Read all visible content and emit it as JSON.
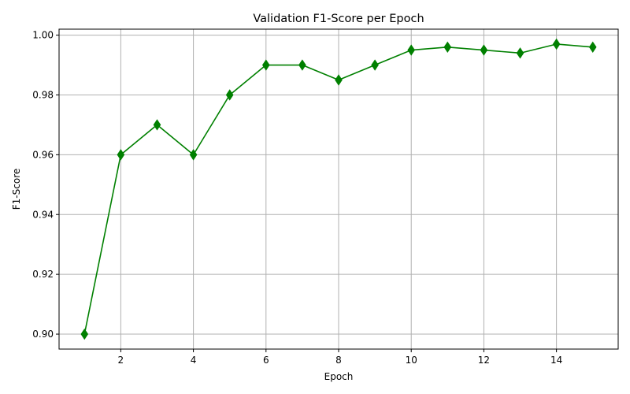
{
  "chart_data": {
    "type": "line",
    "title": "Validation F1-Score per Epoch",
    "xlabel": "Epoch",
    "ylabel": "F1-Score",
    "xlim": [
      0.3,
      15.7
    ],
    "ylim": [
      0.895,
      1.002
    ],
    "xticks": [
      2,
      4,
      6,
      8,
      10,
      12,
      14
    ],
    "yticks": [
      0.9,
      0.92,
      0.94,
      0.96,
      0.98,
      1.0
    ],
    "ytick_labels": [
      "0.90",
      "0.92",
      "0.94",
      "0.96",
      "0.98",
      "1.00"
    ],
    "grid": true,
    "series": [
      {
        "marker": "diamond",
        "color": "#008000",
        "x": [
          1,
          2,
          3,
          4,
          5,
          6,
          7,
          8,
          9,
          10,
          11,
          12,
          13,
          14,
          15
        ],
        "y": [
          0.9,
          0.96,
          0.97,
          0.96,
          0.98,
          0.99,
          0.99,
          0.985,
          0.99,
          0.995,
          0.996,
          0.995,
          0.994,
          0.997,
          0.996
        ]
      }
    ]
  },
  "colors": {
    "line": "#008000",
    "grid": "#b0b0b0",
    "axes": "#000000"
  }
}
